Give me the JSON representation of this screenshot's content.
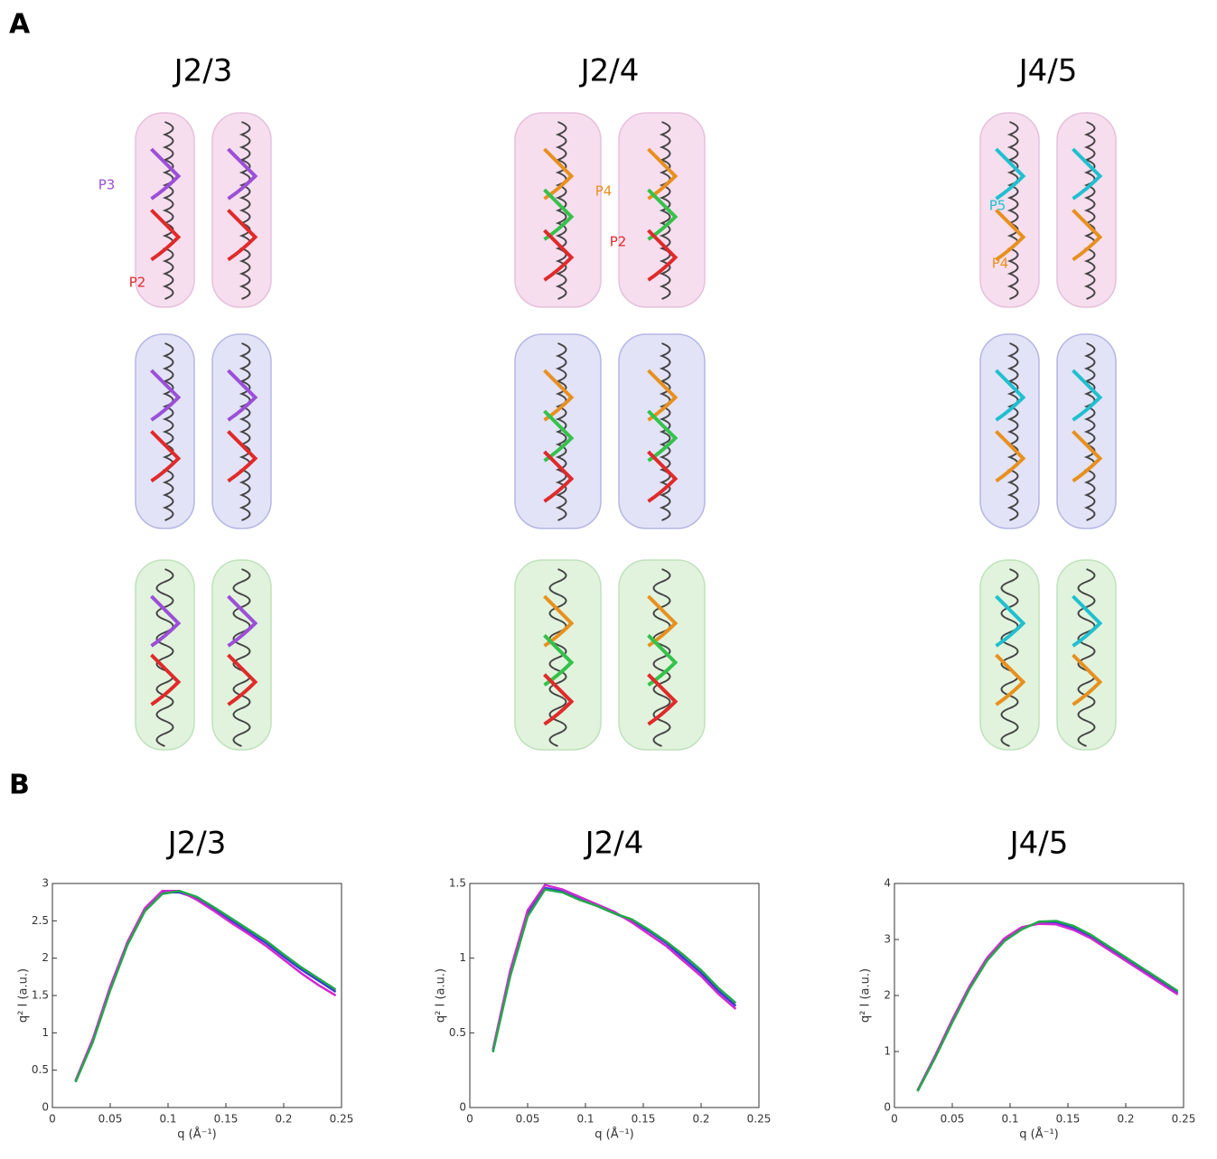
{
  "panel_a": {
    "label": "A",
    "columns": [
      "J2/3",
      "J2/4",
      "J4/5"
    ],
    "annotations": [
      {
        "text": "P3",
        "color": "#9b4fd8"
      },
      {
        "text": "P2",
        "color": "#e02a2a"
      },
      {
        "text": "P4",
        "color": "#e8901e"
      },
      {
        "text": "P2",
        "color": "#e02a2a"
      },
      {
        "text": "P5",
        "color": "#1fc0cf"
      },
      {
        "text": "P4",
        "color": "#e8901e"
      }
    ]
  },
  "panel_b": {
    "label": "B"
  },
  "chart_data": [
    {
      "type": "line",
      "title": "J2/3",
      "x_label": "q (Å⁻¹)",
      "y_label": "q² I (a.u.)",
      "x": [
        0.02,
        0.035,
        0.05,
        0.065,
        0.08,
        0.095,
        0.11,
        0.125,
        0.14,
        0.155,
        0.17,
        0.185,
        0.2,
        0.215,
        0.23,
        0.245
      ],
      "series": [
        {
          "color": "#3a3ad8",
          "values": [
            0.35,
            0.9,
            1.6,
            2.2,
            2.65,
            2.88,
            2.88,
            2.8,
            2.65,
            2.5,
            2.35,
            2.2,
            2.02,
            1.85,
            1.7,
            1.55
          ]
        },
        {
          "color": "#d02ad0",
          "values": [
            0.36,
            0.92,
            1.62,
            2.22,
            2.67,
            2.9,
            2.9,
            2.78,
            2.63,
            2.47,
            2.32,
            2.16,
            1.98,
            1.8,
            1.64,
            1.5
          ]
        },
        {
          "color": "#22a84a",
          "values": [
            0.34,
            0.88,
            1.57,
            2.18,
            2.63,
            2.86,
            2.9,
            2.82,
            2.68,
            2.53,
            2.38,
            2.23,
            2.05,
            1.88,
            1.73,
            1.58
          ]
        }
      ],
      "xlim": [
        0,
        0.25
      ],
      "xticks": [
        0,
        0.05,
        0.1,
        0.15,
        0.2,
        0.25
      ],
      "ylim": [
        0,
        3
      ],
      "yticks": [
        0,
        0.5,
        1,
        1.5,
        2,
        2.5,
        3
      ]
    },
    {
      "type": "line",
      "title": "J2/4",
      "x_label": "q (Å⁻¹)",
      "y_label": "q² I (a.u.)",
      "x": [
        0.02,
        0.035,
        0.05,
        0.065,
        0.08,
        0.095,
        0.11,
        0.125,
        0.14,
        0.155,
        0.17,
        0.185,
        0.2,
        0.215,
        0.23
      ],
      "series": [
        {
          "color": "#3a3ad8",
          "values": [
            0.38,
            0.9,
            1.3,
            1.47,
            1.45,
            1.4,
            1.35,
            1.3,
            1.25,
            1.18,
            1.1,
            1.0,
            0.9,
            0.78,
            0.68
          ]
        },
        {
          "color": "#d02ad0",
          "values": [
            0.39,
            0.92,
            1.32,
            1.49,
            1.46,
            1.41,
            1.36,
            1.31,
            1.24,
            1.16,
            1.08,
            0.98,
            0.88,
            0.76,
            0.66
          ]
        },
        {
          "color": "#22a84a",
          "values": [
            0.37,
            0.88,
            1.28,
            1.46,
            1.44,
            1.39,
            1.35,
            1.3,
            1.26,
            1.19,
            1.11,
            1.02,
            0.92,
            0.8,
            0.7
          ]
        }
      ],
      "xlim": [
        0,
        0.25
      ],
      "xticks": [
        0,
        0.05,
        0.1,
        0.15,
        0.2,
        0.25
      ],
      "ylim": [
        0,
        1.5
      ],
      "yticks": [
        0,
        0.5,
        1,
        1.5
      ]
    },
    {
      "type": "line",
      "title": "J4/5",
      "x_label": "q (Å⁻¹)",
      "y_label": "q² I (a.u.)",
      "x": [
        0.02,
        0.035,
        0.05,
        0.065,
        0.08,
        0.095,
        0.11,
        0.125,
        0.14,
        0.155,
        0.17,
        0.185,
        0.2,
        0.215,
        0.23,
        0.245
      ],
      "series": [
        {
          "color": "#3a3ad8",
          "values": [
            0.3,
            0.9,
            1.55,
            2.15,
            2.65,
            3.0,
            3.2,
            3.3,
            3.3,
            3.2,
            3.05,
            2.85,
            2.65,
            2.45,
            2.25,
            2.05
          ]
        },
        {
          "color": "#d02ad0",
          "values": [
            0.31,
            0.92,
            1.57,
            2.17,
            2.67,
            3.02,
            3.22,
            3.28,
            3.27,
            3.17,
            3.02,
            2.82,
            2.62,
            2.42,
            2.22,
            2.02
          ]
        },
        {
          "color": "#22a84a",
          "values": [
            0.29,
            0.88,
            1.52,
            2.12,
            2.62,
            2.97,
            3.18,
            3.32,
            3.33,
            3.24,
            3.08,
            2.88,
            2.68,
            2.48,
            2.28,
            2.08
          ]
        }
      ],
      "xlim": [
        0,
        0.25
      ],
      "xticks": [
        0,
        0.05,
        0.1,
        0.15,
        0.2,
        0.25
      ],
      "ylim": [
        0,
        4
      ],
      "yticks": [
        0,
        1,
        2,
        3,
        4
      ]
    }
  ]
}
